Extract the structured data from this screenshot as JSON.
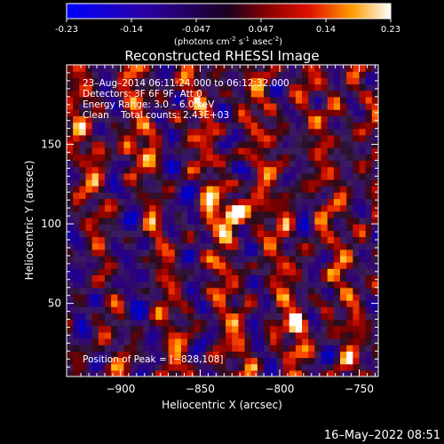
{
  "colorbar": {
    "ticks": [
      "-0.23",
      "-0.14",
      "-0.047",
      "0.047",
      "0.14",
      "0.23"
    ],
    "units_prefix": "(photons cm",
    "units_exp1": "-2",
    "units_mid": " s",
    "units_exp2": "-1",
    "units_suffix": " asec",
    "units_exp3": "-2",
    "units_close": ")",
    "min": -0.23,
    "max": 0.23
  },
  "chart_data": {
    "type": "heatmap",
    "title": "Reconstructed RHESSI Image",
    "xlabel": "Heliocentric X (arcsec)",
    "ylabel": "Heliocentric Y (arcsec)",
    "xlim": [
      -934,
      -738
    ],
    "ylim": [
      4,
      200
    ],
    "x_ticks": [
      -900,
      -850,
      -800,
      -750
    ],
    "y_ticks": [
      50,
      100,
      150
    ],
    "x_tick_labels": [
      "−900",
      "−850",
      "−800",
      "−750"
    ],
    "y_tick_labels": [
      "50",
      "100",
      "150"
    ],
    "annotations": [
      "23–Aug–2014 06:11:24.000 to 06:12:32.000",
      "Detectors: 3F 6F 9F, Att 0",
      "Energy Range: 3.0 – 6.0 keV",
      "Clean    Total counts: 2.43E+03"
    ],
    "peak_label": "Position of Peak = [−828,108]",
    "peak": [
      -828,
      108
    ],
    "sources": [
      {
        "x": -828,
        "y": 108,
        "value": 0.23
      },
      {
        "x": -788,
        "y": 36,
        "value": 0.15
      },
      {
        "x": -896,
        "y": 146,
        "value": 0.13
      }
    ],
    "colormap": [
      "#0000ff",
      "#2a007a",
      "#4b2070",
      "#2a0d1c",
      "#8a0000",
      "#d01800",
      "#ff5a00",
      "#ffb000",
      "#ffffff"
    ]
  },
  "timestamp": "16–May–2022 08:51"
}
